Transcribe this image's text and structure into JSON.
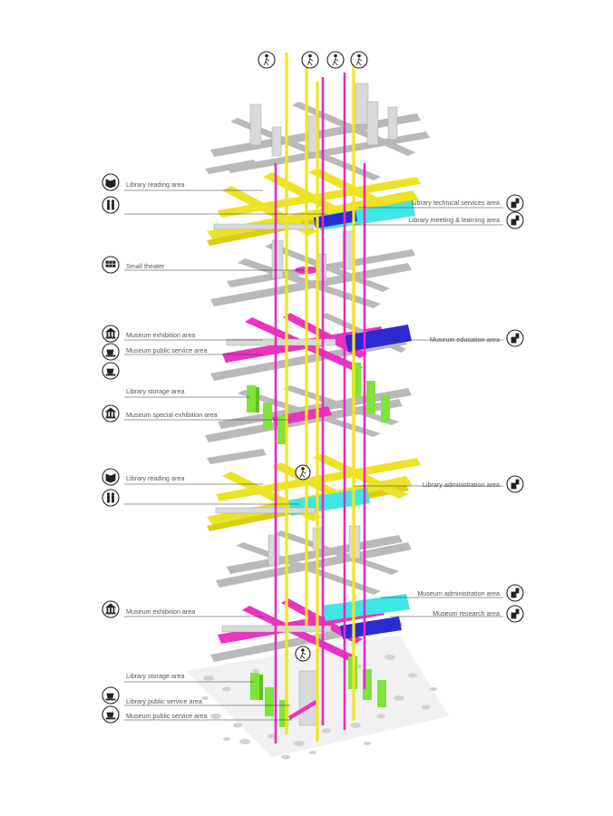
{
  "colors": {
    "library": "#ece327",
    "museum": "#ea33c0",
    "support": "#3ee6e6",
    "education": "#2b2bd6",
    "storage": "#7fe33a",
    "circulation": "#b9b9b9"
  },
  "labels": {
    "library_reading_1": "Library reading area",
    "library_technical": "Library technical services area",
    "library_meeting": "Library meeting & learning area",
    "small_theater": "Small theater",
    "museum_exhibition_1": "Museum exhibition area",
    "museum_public_service_1": "Museum public service area",
    "museum_education": "Museum education area",
    "library_storage_1": "Library storage area",
    "museum_special_exhibition": "Museum special exhibition area",
    "library_reading_2": "Library reading area",
    "library_administration": "Library administration area",
    "museum_administration": "Museum administration area",
    "museum_exhibition_2": "Museum exhibition area",
    "museum_research": "Museum research area",
    "library_storage_2": "Library storage area",
    "library_public_service": "Library public service area",
    "museum_public_service_2": "Museum public service area"
  },
  "icons": {
    "top_row": [
      "person-walking-icon",
      "person-walking-icon",
      "person-walking-icon",
      "person-walking-icon"
    ],
    "left": [
      "book-icon",
      "restroom-icon",
      "theater-seats-icon",
      "museum-icon",
      "cup-icon",
      "cup-icon",
      "museum-icon",
      "book-icon",
      "restroom-icon",
      "museum-icon",
      "cup-icon",
      "cup-icon"
    ],
    "right": [
      "office-icon",
      "office-icon",
      "office-icon",
      "office-icon",
      "office-icon",
      "office-icon"
    ],
    "center": "person-walking-icon"
  }
}
